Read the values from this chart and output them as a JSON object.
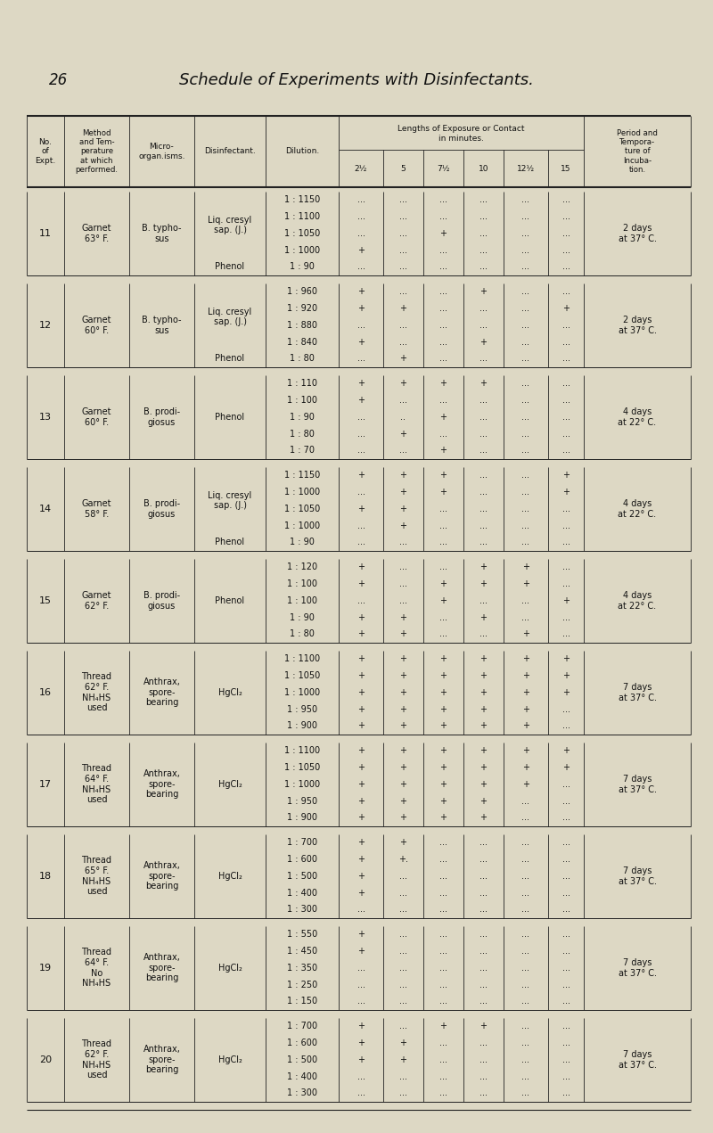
{
  "title": "Schedule of Experiments with Disinfectants.",
  "page_num": "26",
  "bg_color": "#ddd8c4",
  "rows": [
    {
      "expt": "11",
      "method": "Garnet\n63° F.",
      "micro": "B. typho-\nsus",
      "disinfect": [
        [
          "Liq. cresyl\nsap. (J.)",
          4
        ],
        [
          "Phenol",
          1
        ]
      ],
      "dilutions": [
        "1 : 1150",
        "1 : 1100",
        "1 : 1050",
        "1 : 1000",
        "1 : 90"
      ],
      "data": [
        [
          "...",
          "...",
          "...",
          "...",
          "...",
          "..."
        ],
        [
          "...",
          "...",
          "...",
          "...",
          "...",
          "..."
        ],
        [
          "...",
          "...",
          "+",
          "...",
          "...",
          "..."
        ],
        [
          "+",
          "...",
          "...",
          "...",
          "...",
          "..."
        ],
        [
          "...",
          "...",
          "...",
          "...",
          "...",
          "..."
        ]
      ],
      "period": "2 days\nat 37° C."
    },
    {
      "expt": "12",
      "method": "Garnet\n60° F.",
      "micro": "B. typho-\nsus",
      "disinfect": [
        [
          "Liq. cresyl\nsap. (J.)",
          4
        ],
        [
          "Phenol",
          1
        ]
      ],
      "dilutions": [
        "1 : 960",
        "1 : 920",
        "1 : 880",
        "1 : 840",
        "1 : 80"
      ],
      "data": [
        [
          "+",
          "...",
          "...",
          "+",
          "...",
          "..."
        ],
        [
          "+",
          "+",
          "...",
          "...",
          "...",
          "+"
        ],
        [
          "...",
          "...",
          "...",
          "...",
          "...",
          "..."
        ],
        [
          "+",
          "...",
          "...",
          "+",
          "...",
          "..."
        ],
        [
          "...",
          "+",
          "...",
          "...",
          "...",
          "..."
        ]
      ],
      "period": "2 days\nat 37° C."
    },
    {
      "expt": "13",
      "method": "Garnet\n60° F.",
      "micro": "B. prodi-\ngiosus",
      "disinfect": [
        [
          "Phenol",
          5
        ]
      ],
      "dilutions": [
        "1 : 110",
        "1 : 100",
        "1 : 90",
        "1 : 80",
        "1 : 70"
      ],
      "data": [
        [
          "+",
          "+",
          "+",
          "+",
          "...",
          "..."
        ],
        [
          "+",
          "...",
          "...",
          "...",
          "...",
          "..."
        ],
        [
          "...",
          "..",
          "+",
          "...",
          "...",
          "..."
        ],
        [
          "...",
          "+",
          "...",
          "...",
          "...",
          "..."
        ],
        [
          "...",
          "...",
          "+",
          "...",
          "...",
          "..."
        ]
      ],
      "period": "4 days\nat 22° C."
    },
    {
      "expt": "14",
      "method": "Garnet\n58° F.",
      "micro": "B. prodi-\ngiosus",
      "disinfect": [
        [
          "Liq. cresyl\nsap. (J.)",
          4
        ],
        [
          "Phenol",
          1
        ]
      ],
      "dilutions": [
        "1 : 1150",
        "1 : 1000",
        "1 : 1050",
        "1 : 1000",
        "1 : 90"
      ],
      "data": [
        [
          "+",
          "+",
          "+",
          "...",
          "...",
          "+"
        ],
        [
          "...",
          "+",
          "+",
          "...",
          "...",
          "+"
        ],
        [
          "+",
          "+",
          "...",
          "...",
          "...",
          "..."
        ],
        [
          "...",
          "+",
          "...",
          "...",
          "...",
          "..."
        ],
        [
          "...",
          "...",
          "...",
          "...",
          "...",
          "..."
        ]
      ],
      "period": "4 days\nat 22° C."
    },
    {
      "expt": "15",
      "method": "Garnet\n62° F.",
      "micro": "B. prodi-\ngiosus",
      "disinfect": [
        [
          "Phenol",
          5
        ]
      ],
      "dilutions": [
        "1 : 120",
        "1 : 100",
        "1 : 100",
        "1 : 90",
        "1 : 80"
      ],
      "data": [
        [
          "+",
          "...",
          "...",
          "+",
          "+",
          "..."
        ],
        [
          "+",
          "...",
          "+",
          "+",
          "+",
          "..."
        ],
        [
          "...",
          "...",
          "+",
          "...",
          "...",
          "+"
        ],
        [
          "+",
          "+",
          "...",
          "+",
          "...",
          "..."
        ],
        [
          "+",
          "+",
          "...",
          "...",
          "+",
          "..."
        ]
      ],
      "period": "4 days\nat 22° C."
    },
    {
      "expt": "16",
      "method": "Thread\n62° F.\nNH₄HS\nused",
      "micro": "Anthrax,\nspore-\nbearing",
      "disinfect": [
        [
          "HgCl₂",
          5
        ]
      ],
      "dilutions": [
        "1 : 1100",
        "1 : 1050",
        "1 : 1000",
        "1 : 950",
        "1 : 900"
      ],
      "data": [
        [
          "+",
          "+",
          "+",
          "+",
          "+",
          "+"
        ],
        [
          "+",
          "+",
          "+",
          "+",
          "+",
          "+"
        ],
        [
          "+",
          "+",
          "+",
          "+",
          "+",
          "+"
        ],
        [
          "+",
          "+",
          "+",
          "+",
          "+",
          "..."
        ],
        [
          "+",
          "+",
          "+",
          "+",
          "+",
          "..."
        ]
      ],
      "period": "7 days\nat 37° C."
    },
    {
      "expt": "17",
      "method": "Thread\n64° F.\nNH₄HS\nused",
      "micro": "Anthrax,\nspore-\nbearing",
      "disinfect": [
        [
          "HgCl₂",
          5
        ]
      ],
      "dilutions": [
        "1 : 1100",
        "1 : 1050",
        "1 : 1000",
        "1 : 950",
        "1 : 900"
      ],
      "data": [
        [
          "+",
          "+",
          "+",
          "+",
          "+",
          "+"
        ],
        [
          "+",
          "+",
          "+",
          "+",
          "+",
          "+"
        ],
        [
          "+",
          "+",
          "+",
          "+",
          "+",
          "..."
        ],
        [
          "+",
          "+",
          "+",
          "+",
          "...",
          "..."
        ],
        [
          "+",
          "+",
          "+",
          "+",
          "...",
          "..."
        ]
      ],
      "period": "7 days\nat 37° C."
    },
    {
      "expt": "18",
      "method": "Thread\n65° F.\nNH₄HS\nused",
      "micro": "Anthrax,\nspore-\nbearing",
      "disinfect": [
        [
          "HgCl₂",
          5
        ]
      ],
      "dilutions": [
        "1 : 700",
        "1 : 600",
        "1 : 500",
        "1 : 400",
        "1 : 300"
      ],
      "data": [
        [
          "+",
          "+",
          "...",
          "...",
          "...",
          "..."
        ],
        [
          "+",
          "+.",
          "...",
          "...",
          "...",
          "..."
        ],
        [
          "+",
          "...",
          "...",
          "...",
          "...",
          "..."
        ],
        [
          "+",
          "...",
          "...",
          "...",
          "...",
          "..."
        ],
        [
          "...",
          "...",
          "...",
          "...",
          "...",
          "..."
        ]
      ],
      "period": "7 days\nat 37° C."
    },
    {
      "expt": "19",
      "method": "Thread\n64° F.\nNo\nNH₄HS",
      "micro": "Anthrax,\nspore-\nbearing",
      "disinfect": [
        [
          "HgCl₂",
          5
        ]
      ],
      "dilutions": [
        "1 : 550",
        "1 : 450",
        "1 : 350",
        "1 : 250",
        "1 : 150"
      ],
      "data": [
        [
          "+",
          "...",
          "...",
          "...",
          "...",
          "..."
        ],
        [
          "+",
          "...",
          "...",
          "...",
          "...",
          "..."
        ],
        [
          "...",
          "...",
          "...",
          "...",
          "...",
          "..."
        ],
        [
          "...",
          "...",
          "...",
          "...",
          "...",
          "..."
        ],
        [
          "...",
          "...",
          "...",
          "...",
          "...",
          "..."
        ]
      ],
      "period": "7 days\nat 37° C."
    },
    {
      "expt": "20",
      "method": "Thread\n62° F.\nNH₄HS\nused",
      "micro": "Anthrax,\nspore-\nbearing",
      "disinfect": [
        [
          "HgCl₂",
          5
        ]
      ],
      "dilutions": [
        "1 : 700",
        "1 : 600",
        "1 : 500",
        "1 : 400",
        "1 : 300"
      ],
      "data": [
        [
          "+",
          "...",
          "+",
          "+",
          "...",
          "..."
        ],
        [
          "+",
          "+",
          "...",
          "...",
          "...",
          "..."
        ],
        [
          "+",
          "+",
          "...",
          "...",
          "...",
          "..."
        ],
        [
          "...",
          "...",
          "...",
          "...",
          "...",
          "..."
        ],
        [
          "...",
          "...",
          "...",
          "...",
          "...",
          "..."
        ]
      ],
      "period": "7 days\nat 37° C."
    }
  ]
}
